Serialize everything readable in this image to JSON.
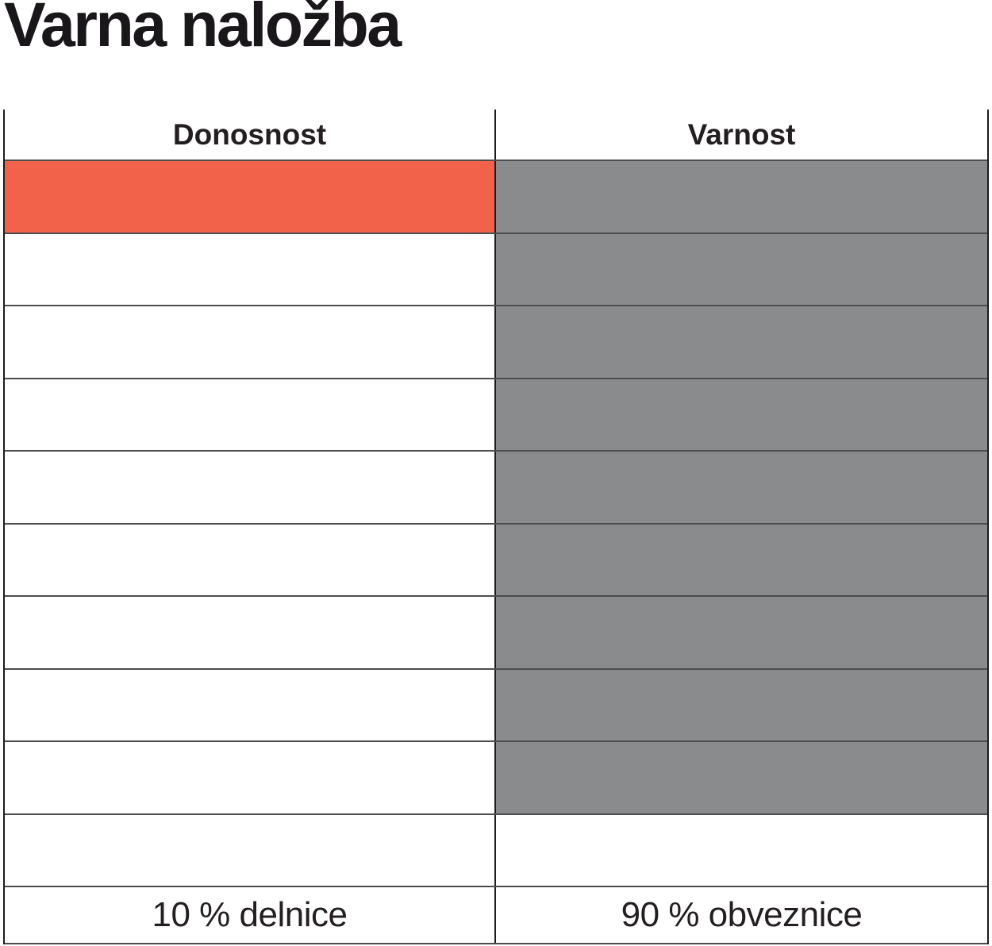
{
  "title": "Varna naložba",
  "chart_data": {
    "type": "table",
    "title": "Varna naložba",
    "layout_hint": "10-row allocation grid; number of filled cells per column encodes the percentage (1 cell = 10 %)",
    "rows": 10,
    "columns": [
      {
        "header": "Donosnost",
        "filled_cells": 1,
        "total_cells": 10,
        "value_percent": 10,
        "fill_color": "#f2624a",
        "label": "10 % delnice"
      },
      {
        "header": "Varnost",
        "filled_cells": 9,
        "total_cells": 10,
        "value_percent": 90,
        "fill_color": "#898b8d",
        "label": "90 % obveznice"
      }
    ]
  }
}
